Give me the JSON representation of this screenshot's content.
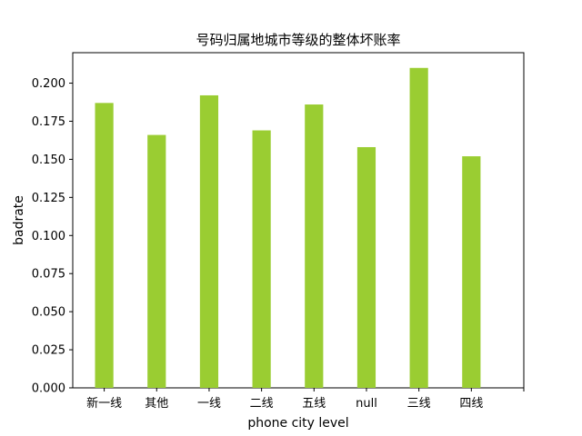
{
  "chart_data": {
    "type": "bar",
    "title": "号码归属地城市等级的整体坏账率",
    "xlabel": "phone city level",
    "ylabel": "badrate",
    "categories": [
      "新一线",
      "其他",
      "一线",
      "二线",
      "五线",
      "null",
      "三线",
      "四线"
    ],
    "values": [
      0.187,
      0.166,
      0.192,
      0.169,
      0.186,
      0.158,
      0.21,
      0.152
    ],
    "ylim": [
      0,
      0.22
    ],
    "yticks": [
      "0.000",
      "0.025",
      "0.050",
      "0.075",
      "0.100",
      "0.125",
      "0.150",
      "0.175",
      "0.200"
    ],
    "ytick_values": [
      0,
      0.025,
      0.05,
      0.075,
      0.1,
      0.125,
      0.15,
      0.175,
      0.2
    ],
    "bar_color": "#9acd32",
    "grid": false,
    "legend": "none"
  }
}
